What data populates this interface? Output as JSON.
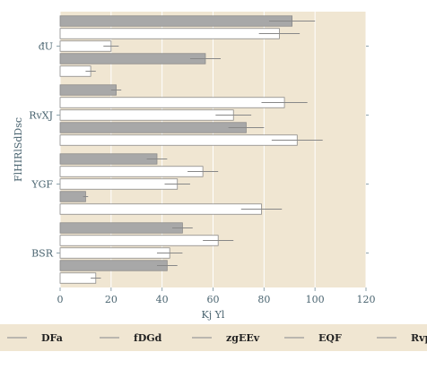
{
  "chart_data": {
    "type": "bar",
    "orientation": "horizontal",
    "title": "",
    "xlabel": "Kj  Yl",
    "ylabel": "FlHIRlSdDsc",
    "xlim": [
      0,
      120
    ],
    "xticks": [
      0,
      20,
      40,
      60,
      80,
      100,
      120
    ],
    "categories": [
      "đU",
      "RvXJ",
      "YGF",
      "BSR"
    ],
    "series": [
      {
        "name": "DFa",
        "color": "#a8a8a8",
        "values": [
          91,
          22,
          38,
          48
        ],
        "errors": [
          9,
          2,
          4,
          4
        ]
      },
      {
        "name": "fDGd",
        "color": "#ffffff",
        "values": [
          86,
          88,
          56,
          62
        ],
        "errors": [
          8,
          9,
          6,
          6
        ]
      },
      {
        "name": "zgEEv",
        "color": "#ffffff",
        "values": [
          20,
          68,
          46,
          43
        ],
        "errors": [
          3,
          7,
          5,
          5
        ]
      },
      {
        "name": "EQF",
        "color": "#a8a8a8",
        "values": [
          57,
          73,
          10,
          42
        ],
        "errors": [
          6,
          7,
          1,
          4
        ]
      },
      {
        "name": "Rvp",
        "color": "#ffffff",
        "values": [
          12,
          93,
          79,
          14
        ],
        "errors": [
          2,
          10,
          8,
          2
        ]
      }
    ],
    "legend_position": "bottom",
    "grid": true,
    "background_color": "#f0e6d2"
  }
}
